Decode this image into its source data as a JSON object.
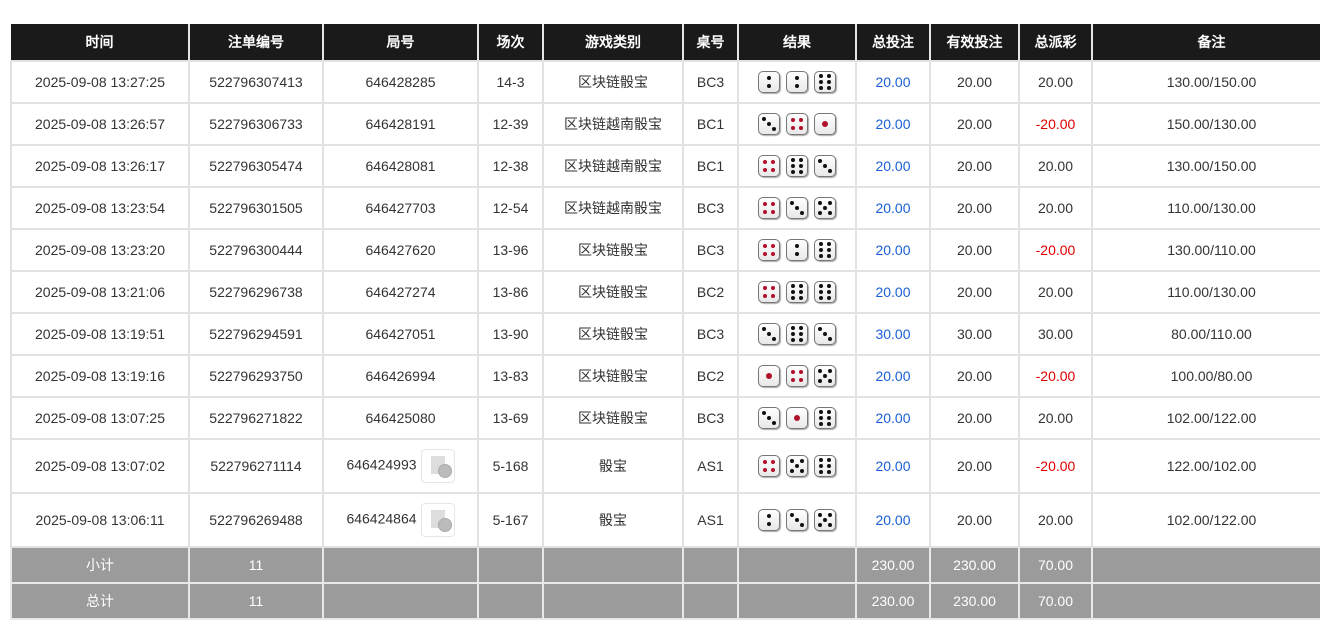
{
  "headers": [
    "时间",
    "注单编号",
    "局号",
    "场次",
    "游戏类别",
    "桌号",
    "结果",
    "总投注",
    "有效投注",
    "总派彩",
    "备注"
  ],
  "rows": [
    {
      "time": "2025-09-08 13:27:25",
      "bet_id": "522796307413",
      "round": "646428285",
      "session": "14-3",
      "game": "区块链骰宝",
      "table": "BC3",
      "dice": [
        2,
        2,
        6
      ],
      "total_bet": "20.00",
      "valid_bet": "20.00",
      "payout": "20.00",
      "note": "130.00/150.00",
      "video": false
    },
    {
      "time": "2025-09-08 13:26:57",
      "bet_id": "522796306733",
      "round": "646428191",
      "session": "12-39",
      "game": "区块链越南骰宝",
      "table": "BC1",
      "dice": [
        3,
        4,
        1
      ],
      "total_bet": "20.00",
      "valid_bet": "20.00",
      "payout": "-20.00",
      "note": "150.00/130.00",
      "video": false
    },
    {
      "time": "2025-09-08 13:26:17",
      "bet_id": "522796305474",
      "round": "646428081",
      "session": "12-38",
      "game": "区块链越南骰宝",
      "table": "BC1",
      "dice": [
        4,
        6,
        3
      ],
      "total_bet": "20.00",
      "valid_bet": "20.00",
      "payout": "20.00",
      "note": "130.00/150.00",
      "video": false
    },
    {
      "time": "2025-09-08 13:23:54",
      "bet_id": "522796301505",
      "round": "646427703",
      "session": "12-54",
      "game": "区块链越南骰宝",
      "table": "BC3",
      "dice": [
        4,
        3,
        5
      ],
      "total_bet": "20.00",
      "valid_bet": "20.00",
      "payout": "20.00",
      "note": "110.00/130.00",
      "video": false
    },
    {
      "time": "2025-09-08 13:23:20",
      "bet_id": "522796300444",
      "round": "646427620",
      "session": "13-96",
      "game": "区块链骰宝",
      "table": "BC3",
      "dice": [
        4,
        2,
        6
      ],
      "total_bet": "20.00",
      "valid_bet": "20.00",
      "payout": "-20.00",
      "note": "130.00/110.00",
      "video": false
    },
    {
      "time": "2025-09-08 13:21:06",
      "bet_id": "522796296738",
      "round": "646427274",
      "session": "13-86",
      "game": "区块链骰宝",
      "table": "BC2",
      "dice": [
        4,
        6,
        6
      ],
      "total_bet": "20.00",
      "valid_bet": "20.00",
      "payout": "20.00",
      "note": "110.00/130.00",
      "video": false
    },
    {
      "time": "2025-09-08 13:19:51",
      "bet_id": "522796294591",
      "round": "646427051",
      "session": "13-90",
      "game": "区块链骰宝",
      "table": "BC3",
      "dice": [
        3,
        6,
        3
      ],
      "total_bet": "30.00",
      "valid_bet": "30.00",
      "payout": "30.00",
      "note": "80.00/110.00",
      "video": false
    },
    {
      "time": "2025-09-08 13:19:16",
      "bet_id": "522796293750",
      "round": "646426994",
      "session": "13-83",
      "game": "区块链骰宝",
      "table": "BC2",
      "dice": [
        1,
        4,
        5
      ],
      "total_bet": "20.00",
      "valid_bet": "20.00",
      "payout": "-20.00",
      "note": "100.00/80.00",
      "video": false
    },
    {
      "time": "2025-09-08 13:07:25",
      "bet_id": "522796271822",
      "round": "646425080",
      "session": "13-69",
      "game": "区块链骰宝",
      "table": "BC3",
      "dice": [
        3,
        1,
        6
      ],
      "total_bet": "20.00",
      "valid_bet": "20.00",
      "payout": "20.00",
      "note": "102.00/122.00",
      "video": false
    },
    {
      "time": "2025-09-08 13:07:02",
      "bet_id": "522796271114",
      "round": "646424993",
      "session": "5-168",
      "game": "骰宝",
      "table": "AS1",
      "dice": [
        4,
        5,
        6
      ],
      "total_bet": "20.00",
      "valid_bet": "20.00",
      "payout": "-20.00",
      "note": "122.00/102.00",
      "video": true
    },
    {
      "time": "2025-09-08 13:06:11",
      "bet_id": "522796269488",
      "round": "646424864",
      "session": "5-167",
      "game": "骰宝",
      "table": "AS1",
      "dice": [
        2,
        3,
        5
      ],
      "total_bet": "20.00",
      "valid_bet": "20.00",
      "payout": "20.00",
      "note": "102.00/122.00",
      "video": true
    }
  ],
  "subtotal": {
    "label": "小计",
    "count": "11",
    "total_bet": "230.00",
    "valid_bet": "230.00",
    "payout": "70.00"
  },
  "total": {
    "label": "总计",
    "count": "11",
    "total_bet": "230.00",
    "valid_bet": "230.00",
    "payout": "70.00"
  },
  "colors": {
    "header_bg": "#1a1a1a",
    "bet_blue": "#1a5fd6",
    "loss_red": "#e00000",
    "summary_bg": "#9b9b9b"
  }
}
